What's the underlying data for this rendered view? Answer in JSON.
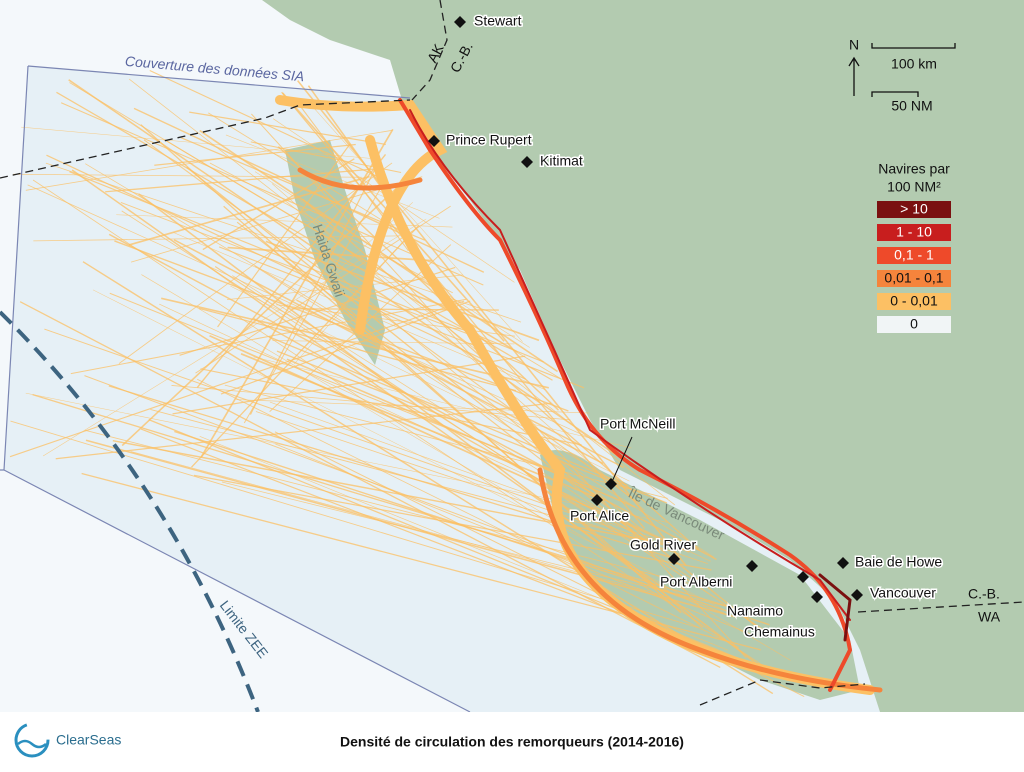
{
  "places": [
    {
      "label": "Stewart"
    },
    {
      "label": "Prince Rupert"
    },
    {
      "label": "Kitimat"
    },
    {
      "label": "Port McNeill"
    },
    {
      "label": "Port Alice"
    },
    {
      "label": "Gold River"
    },
    {
      "label": "Port Alberni"
    },
    {
      "label": "Nanaimo"
    },
    {
      "label": "Chemainus"
    },
    {
      "label": "Baie de Howe"
    },
    {
      "label": "Vancouver"
    }
  ],
  "regions": {
    "ak": "AK",
    "bc_north": "C.-B.",
    "bc_south": "C.-B.",
    "wa": "WA",
    "haida": "Haida Gwaii",
    "island": "Île de Vancouver"
  },
  "boundaries": {
    "coverage": "Couverture des données SIA",
    "eez": "Limite ZEE"
  },
  "scale": {
    "north": "N",
    "km": "100 km",
    "nm": "50 NM"
  },
  "legend": {
    "title_lines": [
      "Navires par",
      "100 NM²"
    ],
    "items": [
      {
        "label": "> 10",
        "color": "#7a1010"
      },
      {
        "label": "1 - 10",
        "color": "#c81e1e"
      },
      {
        "label": "0,1 - 1",
        "color": "#ee4a2a"
      },
      {
        "label": "0,01 - 0,1",
        "color": "#f5843c"
      },
      {
        "label": "0 - 0,01",
        "color": "#fcc064"
      },
      {
        "label": "0",
        "color": "#f1f5f6"
      }
    ]
  },
  "footer": {
    "logo": "ClearSeas",
    "title": "Densité de circulation des remorqueurs (2014-2016)"
  }
}
